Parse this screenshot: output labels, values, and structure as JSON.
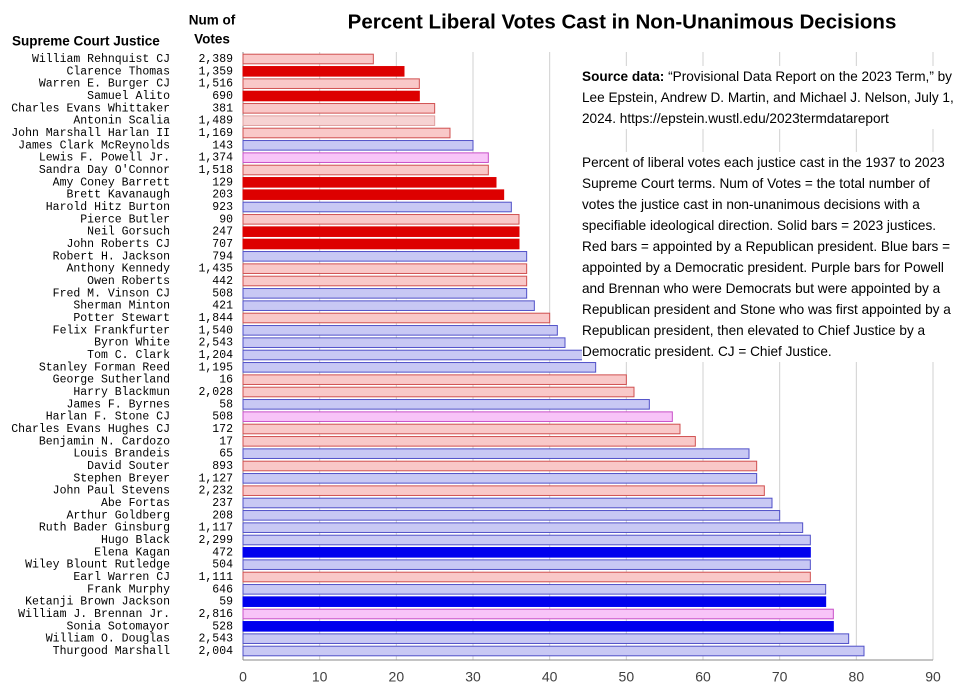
{
  "chart_data": {
    "type": "barh",
    "title": "Percent Liberal Votes Cast in Non-Unanimous Decisions",
    "name_header": "Supreme Court Justice",
    "votes_header": [
      "Num of",
      "Votes"
    ],
    "source_label": "Source data:",
    "source_text": "“Provisional Data Report on the 2023 Term,” by Lee Epstein, Andrew D. Martin, and Michael J. Nelson, July 1, 2024.  https://epstein.wustl.edu/2023termdatareport",
    "note": "Percent of liberal votes each justice cast in the 1937 to 2023 Supreme Court terms. Num of Votes = the total number of votes the justice cast in non-unanimous decisions with a specifiable ideological direction. Solid bars = 2023 justices. Red bars = appointed by a Republican president. Blue bars = appointed by a Democratic president. Purple bars for Powell and Brennan who were Democrats but were appointed by a Republican president and Stone who was first appointed by a Republican president, then elevated to Chief Justice by a Democratic president. CJ = Chief Justice.",
    "categories": [
      "William Rehnquist CJ",
      "Clarence Thomas",
      "Warren E. Burger CJ",
      "Samuel Alito",
      "Charles Evans Whittaker",
      "Antonin Scalia",
      "John Marshall Harlan II",
      "James Clark McReynolds",
      "Lewis F. Powell Jr.",
      "Sandra Day O'Connor",
      "Amy Coney Barrett",
      "Brett Kavanaugh",
      "Harold Hitz Burton",
      "Pierce Butler",
      "Neil Gorsuch",
      "John Roberts CJ",
      "Robert H. Jackson",
      "Anthony Kennedy",
      "Owen Roberts",
      "Fred M. Vinson CJ",
      "Sherman Minton",
      "Potter Stewart",
      "Felix Frankfurter",
      "Byron White",
      "Tom C. Clark",
      "Stanley Forman Reed",
      "George Sutherland",
      "Harry Blackmun",
      "James F. Byrnes",
      "Harlan F. Stone CJ",
      "Charles Evans Hughes CJ",
      "Benjamin N. Cardozo",
      "Louis Brandeis",
      "David Souter",
      "Stephen Breyer",
      "John Paul Stevens",
      "Abe Fortas",
      "Arthur Goldberg",
      "Ruth Bader Ginsburg",
      "Hugo Black",
      "Elena Kagan",
      "Wiley Blount Rutledge",
      "Earl Warren CJ",
      "Frank Murphy",
      "Ketanji Brown Jackson",
      "William J. Brennan Jr.",
      "Sonia Sotomayor",
      "William O. Douglas",
      "Thurgood Marshall"
    ],
    "votes": [
      "2,389",
      "1,359",
      "1,516",
      "690",
      "381",
      "1,489",
      "1,169",
      "143",
      "1,374",
      "1,518",
      "129",
      "203",
      "923",
      "90",
      "247",
      "707",
      "794",
      "1,435",
      "442",
      "508",
      "421",
      "1,844",
      "1,540",
      "2,543",
      "1,204",
      "1,195",
      "16",
      "2,028",
      "58",
      "508",
      "172",
      "17",
      "65",
      "893",
      "1,127",
      "2,232",
      "237",
      "208",
      "1,117",
      "2,299",
      "472",
      "504",
      "1,111",
      "646",
      "59",
      "2,816",
      "528",
      "2,543",
      "2,004"
    ],
    "values": [
      17,
      21,
      23,
      23,
      25,
      25,
      27,
      30,
      32,
      32,
      33,
      34,
      35,
      36,
      36,
      36,
      37,
      37,
      37,
      37,
      38,
      40,
      41,
      42,
      45,
      46,
      50,
      51,
      53,
      56,
      57,
      59,
      66,
      67,
      67,
      68,
      69,
      70,
      73,
      74,
      74,
      74,
      74,
      76,
      76,
      77,
      77,
      79,
      81
    ],
    "colors": [
      "#f9c8c8",
      "#dd0000",
      "#f9c8c8",
      "#dd0000",
      "#f9c8c8",
      "#f6d2d2",
      "#f9c8c8",
      "#c8c8f4",
      "#f8c4f8",
      "#f9c8c8",
      "#dd0000",
      "#dd0000",
      "#c8c8f4",
      "#f9c8c8",
      "#dd0000",
      "#dd0000",
      "#c8c8f4",
      "#f9c8c8",
      "#f9c8c8",
      "#c8c8f4",
      "#c8c8f4",
      "#f9c8c8",
      "#c8c8f4",
      "#c8c8f4",
      "#c8c8f4",
      "#c8c8f4",
      "#f9c8c8",
      "#f9c8c8",
      "#c8c8f4",
      "#f8c4f8",
      "#f9c8c8",
      "#f9c8c8",
      "#c8c8f4",
      "#f9c8c8",
      "#c8c8f4",
      "#f9c8c8",
      "#c8c8f4",
      "#c8c8f4",
      "#c8c8f4",
      "#c8c8f4",
      "#0000ee",
      "#c8c8f4",
      "#f9c8c8",
      "#c8c8f4",
      "#0000ee",
      "#f8c4f8",
      "#0000ee",
      "#c8c8f4",
      "#c8c8f4"
    ],
    "edge_colors": [
      "#d05050",
      "#dd0000",
      "#d05050",
      "#dd0000",
      "#d05050",
      "#e0a0a0",
      "#d05050",
      "#5050c8",
      "#c850c8",
      "#d05050",
      "#dd0000",
      "#dd0000",
      "#5050c8",
      "#d05050",
      "#dd0000",
      "#dd0000",
      "#5050c8",
      "#d05050",
      "#d05050",
      "#5050c8",
      "#5050c8",
      "#d05050",
      "#5050c8",
      "#5050c8",
      "#5050c8",
      "#5050c8",
      "#d05050",
      "#d05050",
      "#5050c8",
      "#c850c8",
      "#d05050",
      "#d05050",
      "#5050c8",
      "#d05050",
      "#5050c8",
      "#d05050",
      "#5050c8",
      "#5050c8",
      "#5050c8",
      "#5050c8",
      "#0000ee",
      "#5050c8",
      "#d05050",
      "#5050c8",
      "#0000ee",
      "#c850c8",
      "#0000ee",
      "#5050c8",
      "#5050c8"
    ],
    "xlim": [
      0,
      90
    ],
    "xticks": [
      0,
      10,
      20,
      30,
      40,
      50,
      60,
      70,
      80,
      90
    ],
    "grid": true
  }
}
